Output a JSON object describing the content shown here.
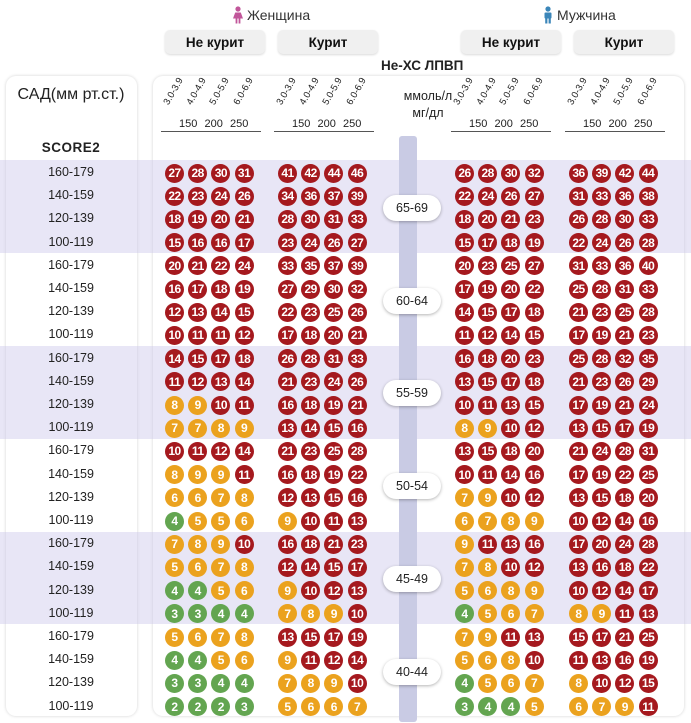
{
  "sex_labels": {
    "female": "Женщина",
    "male": "Мужчина"
  },
  "smoking_labels": {
    "non_smoker": "Не курит",
    "smoker": "Курит"
  },
  "axis": {
    "sbp_title": "САД(мм рт.ст.)",
    "score_label": "SCORE2",
    "non_hdl_title": "Не-ХС ЛПВП",
    "units_mmol": "ммоль/л",
    "units_mg": "мг/дл",
    "mmol_ticks": [
      "3.0-3.9",
      "4.0-4.9",
      "5.0-5.9",
      "6.0-6.9"
    ],
    "mg_ticks": [
      "150",
      "200",
      "250"
    ]
  },
  "colors": {
    "red": "#a5191e",
    "orange": "#eba21e",
    "green": "#63a550"
  },
  "chart_data": {
    "type": "table",
    "title": "SCORE2",
    "x_categories": [
      "3.0-3.9",
      "4.0-4.9",
      "5.0-5.9",
      "6.0-6.9"
    ],
    "sbp_levels": [
      "160-179",
      "140-159",
      "120-139",
      "100-119"
    ],
    "columns": [
      {
        "sex": "Женщина",
        "smoking": "Не курит"
      },
      {
        "sex": "Женщина",
        "smoking": "Курит"
      },
      {
        "sex": "Мужчина",
        "smoking": "Не курит"
      },
      {
        "sex": "Мужчина",
        "smoking": "Курит"
      }
    ],
    "age_groups": [
      {
        "age": "65-69",
        "rows": [
          [
            [
              27,
              28,
              30,
              31
            ],
            [
              41,
              42,
              44,
              46
            ],
            [
              26,
              28,
              30,
              32
            ],
            [
              36,
              39,
              42,
              44
            ]
          ],
          [
            [
              22,
              23,
              24,
              26
            ],
            [
              34,
              36,
              37,
              39
            ],
            [
              22,
              24,
              26,
              27
            ],
            [
              31,
              33,
              36,
              38
            ]
          ],
          [
            [
              18,
              19,
              20,
              21
            ],
            [
              28,
              30,
              31,
              33
            ],
            [
              18,
              20,
              21,
              23
            ],
            [
              26,
              28,
              30,
              33
            ]
          ],
          [
            [
              15,
              16,
              16,
              17
            ],
            [
              23,
              24,
              26,
              27
            ],
            [
              15,
              17,
              18,
              19
            ],
            [
              22,
              24,
              26,
              28
            ]
          ]
        ]
      },
      {
        "age": "60-64",
        "rows": [
          [
            [
              20,
              21,
              22,
              24
            ],
            [
              33,
              35,
              37,
              39
            ],
            [
              20,
              23,
              25,
              27
            ],
            [
              31,
              33,
              36,
              40
            ]
          ],
          [
            [
              16,
              17,
              18,
              19
            ],
            [
              27,
              29,
              30,
              32
            ],
            [
              17,
              19,
              20,
              22
            ],
            [
              25,
              28,
              31,
              33
            ]
          ],
          [
            [
              12,
              13,
              14,
              15
            ],
            [
              22,
              23,
              25,
              26
            ],
            [
              14,
              15,
              17,
              18
            ],
            [
              21,
              23,
              25,
              28
            ]
          ],
          [
            [
              10,
              11,
              11,
              12
            ],
            [
              17,
              18,
              20,
              21
            ],
            [
              11,
              12,
              14,
              15
            ],
            [
              17,
              19,
              21,
              23
            ]
          ]
        ]
      },
      {
        "age": "55-59",
        "rows": [
          [
            [
              14,
              15,
              17,
              18
            ],
            [
              26,
              28,
              31,
              33
            ],
            [
              16,
              18,
              20,
              23
            ],
            [
              25,
              28,
              32,
              35
            ]
          ],
          [
            [
              11,
              12,
              13,
              14
            ],
            [
              21,
              23,
              24,
              26
            ],
            [
              13,
              15,
              17,
              18
            ],
            [
              21,
              23,
              26,
              29
            ]
          ],
          [
            [
              8,
              9,
              10,
              11
            ],
            [
              16,
              18,
              19,
              21
            ],
            [
              10,
              11,
              13,
              15
            ],
            [
              17,
              19,
              21,
              24
            ]
          ],
          [
            [
              7,
              7,
              8,
              9
            ],
            [
              13,
              14,
              15,
              16
            ],
            [
              8,
              9,
              10,
              12
            ],
            [
              13,
              15,
              17,
              19
            ]
          ]
        ]
      },
      {
        "age": "50-54",
        "rows": [
          [
            [
              10,
              11,
              12,
              14
            ],
            [
              21,
              23,
              25,
              28
            ],
            [
              13,
              15,
              18,
              20
            ],
            [
              21,
              24,
              28,
              31
            ]
          ],
          [
            [
              8,
              9,
              9,
              11
            ],
            [
              16,
              18,
              19,
              22
            ],
            [
              10,
              11,
              14,
              16
            ],
            [
              17,
              19,
              22,
              25
            ]
          ],
          [
            [
              6,
              6,
              7,
              8
            ],
            [
              12,
              13,
              15,
              16
            ],
            [
              7,
              9,
              10,
              12
            ],
            [
              13,
              15,
              18,
              20
            ]
          ],
          [
            [
              4,
              5,
              5,
              6
            ],
            [
              9,
              10,
              11,
              13
            ],
            [
              6,
              7,
              8,
              9
            ],
            [
              10,
              12,
              14,
              16
            ]
          ]
        ]
      },
      {
        "age": "45-49",
        "rows": [
          [
            [
              7,
              8,
              9,
              10
            ],
            [
              16,
              18,
              21,
              23
            ],
            [
              9,
              11,
              13,
              16
            ],
            [
              17,
              20,
              24,
              28
            ]
          ],
          [
            [
              5,
              6,
              7,
              8
            ],
            [
              12,
              14,
              15,
              17
            ],
            [
              7,
              8,
              10,
              12
            ],
            [
              13,
              16,
              18,
              22
            ]
          ],
          [
            [
              4,
              4,
              5,
              6
            ],
            [
              9,
              10,
              12,
              13
            ],
            [
              5,
              6,
              8,
              9
            ],
            [
              10,
              12,
              14,
              17
            ]
          ],
          [
            [
              3,
              3,
              4,
              4
            ],
            [
              7,
              8,
              9,
              10
            ],
            [
              4,
              5,
              6,
              7
            ],
            [
              8,
              9,
              11,
              13
            ]
          ]
        ]
      },
      {
        "age": "40-44",
        "rows": [
          [
            [
              5,
              6,
              7,
              8
            ],
            [
              13,
              15,
              17,
              19
            ],
            [
              7,
              9,
              11,
              13
            ],
            [
              15,
              17,
              21,
              25
            ]
          ],
          [
            [
              4,
              4,
              5,
              6
            ],
            [
              9,
              11,
              12,
              14
            ],
            [
              5,
              6,
              8,
              10
            ],
            [
              11,
              13,
              16,
              19
            ]
          ],
          [
            [
              3,
              3,
              4,
              4
            ],
            [
              7,
              8,
              9,
              10
            ],
            [
              4,
              5,
              6,
              7
            ],
            [
              8,
              10,
              12,
              15
            ]
          ],
          [
            [
              2,
              2,
              2,
              3
            ],
            [
              5,
              6,
              6,
              7
            ],
            [
              3,
              4,
              4,
              5
            ],
            [
              6,
              7,
              9,
              11
            ]
          ]
        ]
      }
    ]
  }
}
